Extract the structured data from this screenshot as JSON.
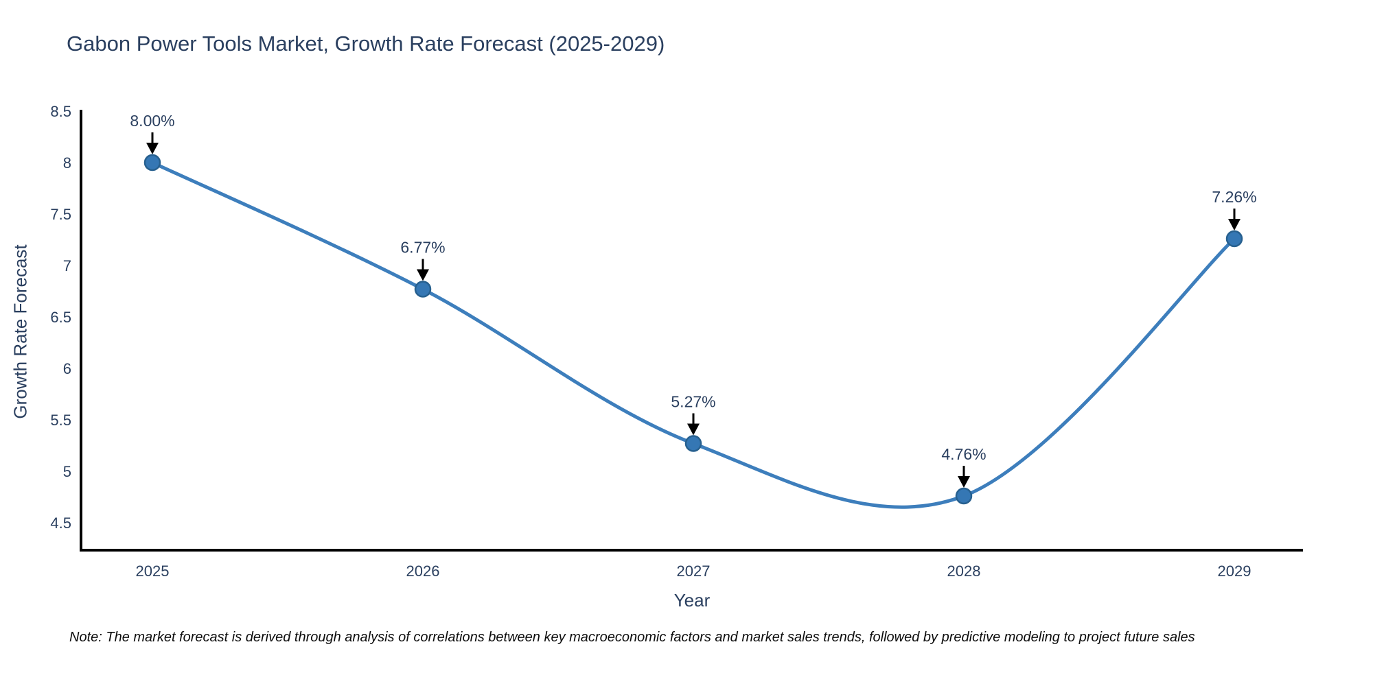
{
  "title": "Gabon Power Tools Market, Growth Rate Forecast (2025-2029)",
  "note": "Note: The market forecast is derived through analysis of correlations between key macroeconomic factors and market sales trends, followed by predictive modeling to project future sales",
  "chart_data": {
    "type": "line",
    "title": "Gabon Power Tools Market, Growth Rate Forecast (2025-2029)",
    "xlabel": "Year",
    "ylabel": "Growth Rate Forecast",
    "line_shape": "spline",
    "grid": false,
    "legend_position": "none",
    "x": [
      2025,
      2026,
      2027,
      2028,
      2029
    ],
    "y": [
      8.0,
      6.77,
      5.27,
      4.76,
      7.26
    ],
    "point_labels": [
      "8.00%",
      "6.77%",
      "5.27%",
      "4.76%",
      "7.26%"
    ],
    "xticks": [
      "2025",
      "2026",
      "2027",
      "2028",
      "2029"
    ],
    "yticks": [
      {
        "value": 8.5,
        "label": "8.5"
      },
      {
        "value": 8,
        "label": "8"
      },
      {
        "value": 7.5,
        "label": "7.5"
      },
      {
        "value": 7,
        "label": "7"
      },
      {
        "value": 6.5,
        "label": "6.5"
      },
      {
        "value": 6,
        "label": "6"
      },
      {
        "value": 5.5,
        "label": "5.5"
      },
      {
        "value": 5,
        "label": "5"
      },
      {
        "value": 4.5,
        "label": "4.5"
      }
    ],
    "xlim": [
      2024.74,
      2029.26
    ],
    "ylim": [
      4.22,
      8.52
    ],
    "colors": {
      "line": "#3d7ebc",
      "marker_fill": "#3577b4",
      "marker_stroke": "#27608f",
      "axis": "#000000",
      "tick_text": "#2a3f5f",
      "annotation_text": "#2a3f5f",
      "annotation_arrow": "#000000"
    }
  }
}
